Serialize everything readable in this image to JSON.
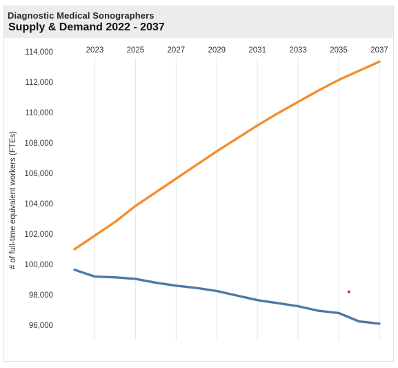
{
  "header": {
    "subtitle": "Diagnostic Medical Sonographers",
    "title": "Supply & Demand 2022 - 2037"
  },
  "chart_data": {
    "type": "line",
    "x": [
      2022,
      2023,
      2024,
      2025,
      2026,
      2027,
      2028,
      2029,
      2030,
      2031,
      2032,
      2033,
      2034,
      2035,
      2036,
      2037
    ],
    "xticks": [
      "2023",
      "2025",
      "2027",
      "2029",
      "2031",
      "2033",
      "2035",
      "2037"
    ],
    "ylabel": "# of full-time equivalent workers (FTEs)",
    "ylim": [
      95000,
      114000
    ],
    "yticks": [
      "96,000",
      "98,000",
      "100,000",
      "102,000",
      "104,000",
      "106,000",
      "108,000",
      "110,000",
      "112,000",
      "114,000"
    ],
    "grid": "vertical",
    "series": [
      {
        "color": "#f28e2b",
        "values": [
          101000,
          101900,
          102800,
          103850,
          104750,
          105650,
          106550,
          107450,
          108300,
          109150,
          109950,
          110700,
          111450,
          112150,
          112750,
          113350
        ]
      },
      {
        "color": "#4e79a7",
        "values": [
          99650,
          99200,
          99150,
          99050,
          98800,
          98600,
          98450,
          98250,
          97950,
          97650,
          97450,
          97250,
          96950,
          96800,
          96250,
          96100
        ]
      }
    ],
    "marker": {
      "x": 2035.5,
      "y": 98200,
      "color": "#d62728"
    }
  }
}
